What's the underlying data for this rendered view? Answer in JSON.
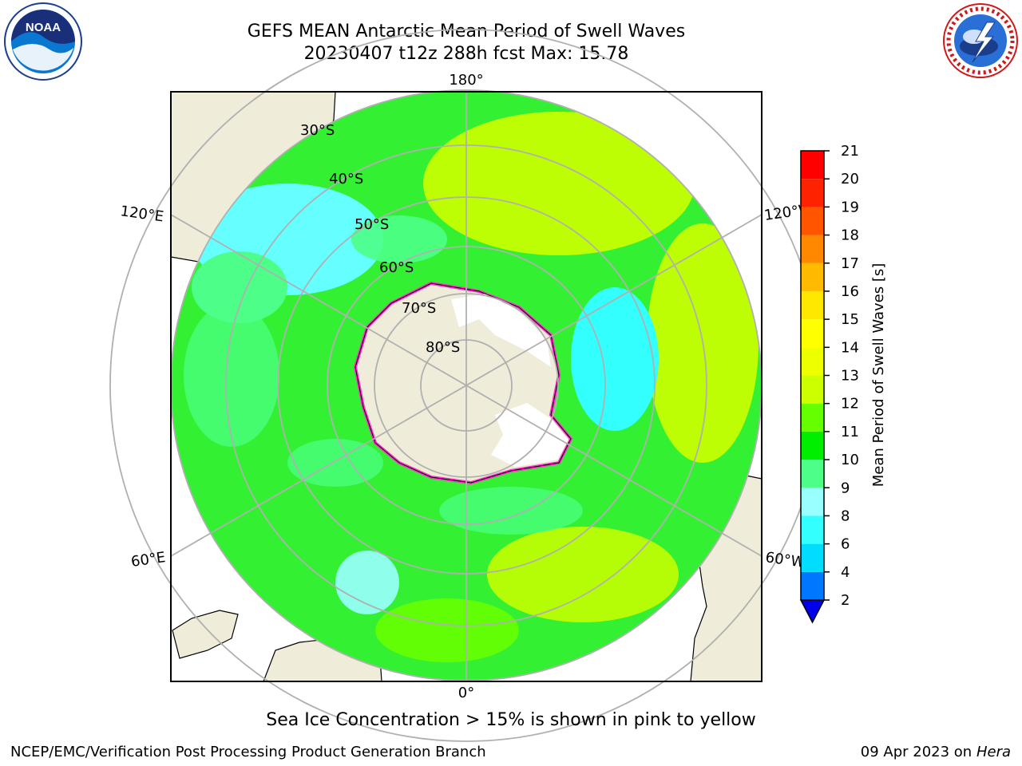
{
  "header": {
    "title_line1": "GEFS MEAN Antarctic Mean Period of Swell Waves",
    "title_line2": "20230407 t12z 288h fcst   Max: 15.78"
  },
  "logos": {
    "left": {
      "name": "noaa-logo",
      "text": "NOAA",
      "ring_text": "NATIONAL OCEANIC AND ATMOSPHERIC ADMINISTRATION · U.S. DEPARTMENT OF COMMERCE"
    },
    "right": {
      "name": "nws-logo",
      "ring_text": "NATIONAL WEATHER SERVICE"
    }
  },
  "map": {
    "projection": "south-polar-stereographic",
    "latitude_labels": [
      "30°S",
      "40°S",
      "50°S",
      "60°S",
      "70°S",
      "80°S"
    ],
    "longitude_labels": {
      "top": "180°",
      "upper_left": "120°E",
      "upper_right": "120°W",
      "lower_left": "60°E",
      "lower_right": "60°W",
      "bottom": "0°"
    },
    "colors": {
      "land": "#efedd9",
      "ocean_default": "#33f033",
      "ice_edge": "#ff33cc",
      "grid": "#b0b0b0"
    }
  },
  "colorbar": {
    "label": "Mean Period of Swell Waves [s]",
    "ticks": [
      "2",
      "4",
      "6",
      "8",
      "9",
      "10",
      "11",
      "12",
      "13",
      "14",
      "15",
      "16",
      "17",
      "18",
      "19",
      "20",
      "21"
    ],
    "colors": [
      "#0077ff",
      "#00ddff",
      "#33ffff",
      "#99ffff",
      "#4dff88",
      "#00ee00",
      "#66ff00",
      "#ccff00",
      "#eeff00",
      "#ffff00",
      "#ffe800",
      "#ffbb00",
      "#ff8800",
      "#ff5500",
      "#ff2200",
      "#ff0000"
    ],
    "under_color": "#0000ee"
  },
  "caption": "Sea Ice Concentration > 15% is shown in pink to yellow",
  "footer": {
    "left": "NCEP/EMC/Verification Post Processing Product Generation Branch",
    "right_date": "09 Apr 2023 on",
    "right_host": "Hera"
  }
}
